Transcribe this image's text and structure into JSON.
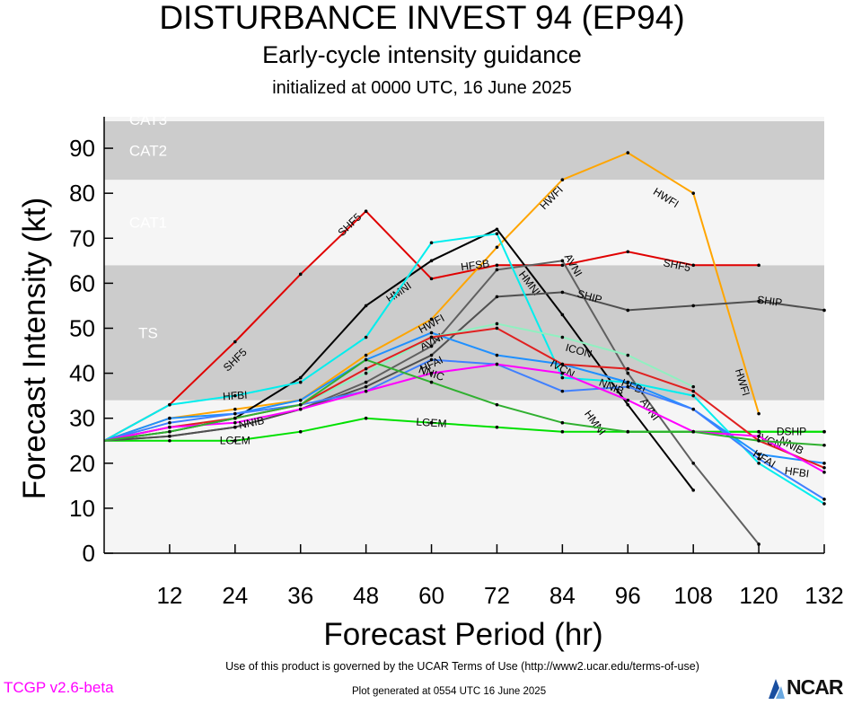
{
  "titles": {
    "main": "DISTURBANCE INVEST 94 (EP94)",
    "sub": "Early-cycle intensity guidance",
    "init": "initialized at 0000 UTC, 16 June 2025"
  },
  "footer": {
    "terms": "Use of this product is governed by the UCAR Terms of Use (http://www2.ucar.edu/terms-of-use)",
    "version": "TCGP v2.6-beta",
    "generated": "Plot generated at 0554 UTC   16 June 2025",
    "logo": "NCAR"
  },
  "chart_data": {
    "type": "line",
    "title": "DISTURBANCE INVEST 94 (EP94)",
    "subtitle": "Early-cycle intensity guidance",
    "xlabel": "Forecast Period (hr)",
    "ylabel": "Forecast Intensity (kt)",
    "xlim": [
      0,
      132
    ],
    "ylim": [
      0,
      97
    ],
    "xticks": [
      12,
      24,
      36,
      48,
      60,
      72,
      84,
      96,
      108,
      120,
      132
    ],
    "yticks": [
      0,
      10,
      20,
      30,
      40,
      50,
      60,
      70,
      80,
      90
    ],
    "grid": false,
    "bands": [
      {
        "label": "TS",
        "y0": 34,
        "y1": 64,
        "color": "#cccccc"
      },
      {
        "label": "CAT1",
        "y0": 64,
        "y1": 83,
        "color": "#f5f5f5"
      },
      {
        "label": "CAT2",
        "y0": 83,
        "y1": 96,
        "color": "#cccccc"
      },
      {
        "label": "CAT3",
        "y0": 96,
        "y1": 97,
        "color": "#f5f5f5"
      }
    ],
    "series": [
      {
        "name": "LGEM",
        "color": "#00e000",
        "x": [
          0,
          12,
          24,
          36,
          48,
          60,
          72,
          84,
          96,
          108,
          120,
          132
        ],
        "y": [
          25,
          25,
          25,
          27,
          30,
          29,
          28,
          27,
          27,
          27,
          27,
          27
        ],
        "labels": [
          [
            24,
            25
          ],
          [
            60,
            29
          ]
        ]
      },
      {
        "name": "DSHP",
        "color": "#00e000",
        "x": [
          96,
          108,
          120,
          132
        ],
        "y": [
          27,
          27,
          27,
          27
        ],
        "labels": [
          [
            126,
            27
          ]
        ]
      },
      {
        "name": "SHF5",
        "color": "#e00000",
        "x": [
          0,
          12,
          24,
          36,
          48,
          60,
          72,
          84,
          96,
          108,
          120
        ],
        "y": [
          25,
          33,
          47,
          62,
          76,
          61,
          64,
          64,
          67,
          64,
          64
        ],
        "labels": [
          [
            24,
            43
          ],
          [
            45,
            73
          ],
          [
            105,
            64
          ]
        ]
      },
      {
        "name": "HWFI",
        "color": "#ffa500",
        "x": [
          0,
          12,
          24,
          36,
          48,
          60,
          72,
          84,
          96,
          108,
          120
        ],
        "y": [
          25,
          30,
          32,
          34,
          44,
          52,
          68,
          83,
          89,
          80,
          31
        ],
        "labels": [
          [
            60,
            51
          ],
          [
            82,
            79
          ],
          [
            103,
            79
          ],
          [
            117,
            38
          ]
        ]
      },
      {
        "name": "HMNI",
        "color": "#000000",
        "x": [
          0,
          12,
          24,
          36,
          48,
          60,
          72,
          84,
          96,
          108
        ],
        "y": [
          25,
          27,
          30,
          39,
          55,
          65,
          72,
          53,
          33,
          14
        ],
        "labels": [
          [
            54,
            58
          ],
          [
            78,
            60
          ],
          [
            90,
            29
          ]
        ]
      },
      {
        "name": "AVNI",
        "color": "#606060",
        "x": [
          0,
          12,
          24,
          36,
          48,
          60,
          72,
          84,
          96,
          108,
          120
        ],
        "y": [
          25,
          26,
          28,
          32,
          38,
          46,
          63,
          65,
          40,
          20,
          2
        ],
        "labels": [
          [
            60,
            47
          ],
          [
            86,
            64
          ],
          [
            100,
            32
          ]
        ]
      },
      {
        "name": "SHIP",
        "color": "#505050",
        "x": [
          0,
          12,
          24,
          36,
          48,
          60,
          72,
          84,
          96,
          108,
          120,
          132
        ],
        "y": [
          25,
          26,
          28,
          32,
          37,
          44,
          57,
          58,
          54,
          55,
          56,
          54
        ],
        "labels": [
          [
            89,
            57
          ],
          [
            122,
            56
          ]
        ]
      },
      {
        "name": "HFSB",
        "color": "#00eeee",
        "x": [
          0,
          12,
          24,
          36,
          48,
          60,
          72,
          84,
          96,
          108,
          120,
          132
        ],
        "y": [
          25,
          33,
          35,
          38,
          48,
          69,
          71,
          39,
          38,
          35,
          20,
          11
        ],
        "labels": [
          [
            68,
            64
          ]
        ]
      },
      {
        "name": "HFBI",
        "color": "#2090ff",
        "x": [
          0,
          12,
          24,
          36,
          48,
          60,
          72,
          84,
          96,
          108,
          120,
          132
        ],
        "y": [
          25,
          30,
          31,
          34,
          43,
          49,
          44,
          42,
          38,
          32,
          22,
          20
        ],
        "labels": [
          [
            24,
            35
          ],
          [
            97,
            37
          ],
          [
            127,
            18
          ]
        ]
      },
      {
        "name": "HFAI",
        "color": "#4080ff",
        "x": [
          0,
          12,
          24,
          36,
          48,
          60,
          72,
          84,
          96,
          108,
          120,
          132
        ],
        "y": [
          25,
          29,
          31,
          33,
          36,
          43,
          42,
          36,
          37,
          32,
          21,
          12
        ],
        "labels": [
          [
            60,
            42
          ],
          [
            121,
            21
          ]
        ]
      },
      {
        "name": "ICON",
        "color": "#90f0c0",
        "x": [
          0,
          12,
          24,
          36,
          48,
          60,
          72,
          84,
          96,
          108
        ],
        "y": [
          25,
          28,
          30,
          33,
          40,
          48,
          51,
          48,
          44,
          37
        ],
        "labels": [
          [
            87,
            45
          ]
        ]
      },
      {
        "name": "IVCN",
        "color": "#e02020",
        "x": [
          0,
          12,
          24,
          36,
          48,
          60,
          72,
          84,
          96,
          108,
          120,
          132
        ],
        "y": [
          25,
          28,
          30,
          33,
          41,
          48,
          50,
          42,
          41,
          36,
          25,
          19
        ],
        "labels": [
          [
            84,
            41
          ],
          [
            122,
            25
          ]
        ]
      },
      {
        "name": "NNIB",
        "color": "#ff00ff",
        "x": [
          0,
          12,
          24,
          36,
          48,
          60,
          72,
          84,
          96,
          108,
          120,
          132
        ],
        "y": [
          25,
          28,
          29,
          32,
          36,
          40,
          42,
          40,
          34,
          27,
          26,
          18
        ],
        "labels": [
          [
            27,
            29
          ],
          [
            93,
            37
          ],
          [
            126,
            24
          ]
        ]
      },
      {
        "name": "NNIC",
        "color": "#30b030",
        "x": [
          0,
          12,
          24,
          36,
          48,
          60,
          72,
          84,
          96,
          108,
          120,
          132
        ],
        "y": [
          25,
          27,
          30,
          33,
          43,
          38,
          33,
          29,
          27,
          27,
          25,
          24
        ],
        "labels": [
          [
            60,
            40
          ]
        ]
      }
    ]
  }
}
